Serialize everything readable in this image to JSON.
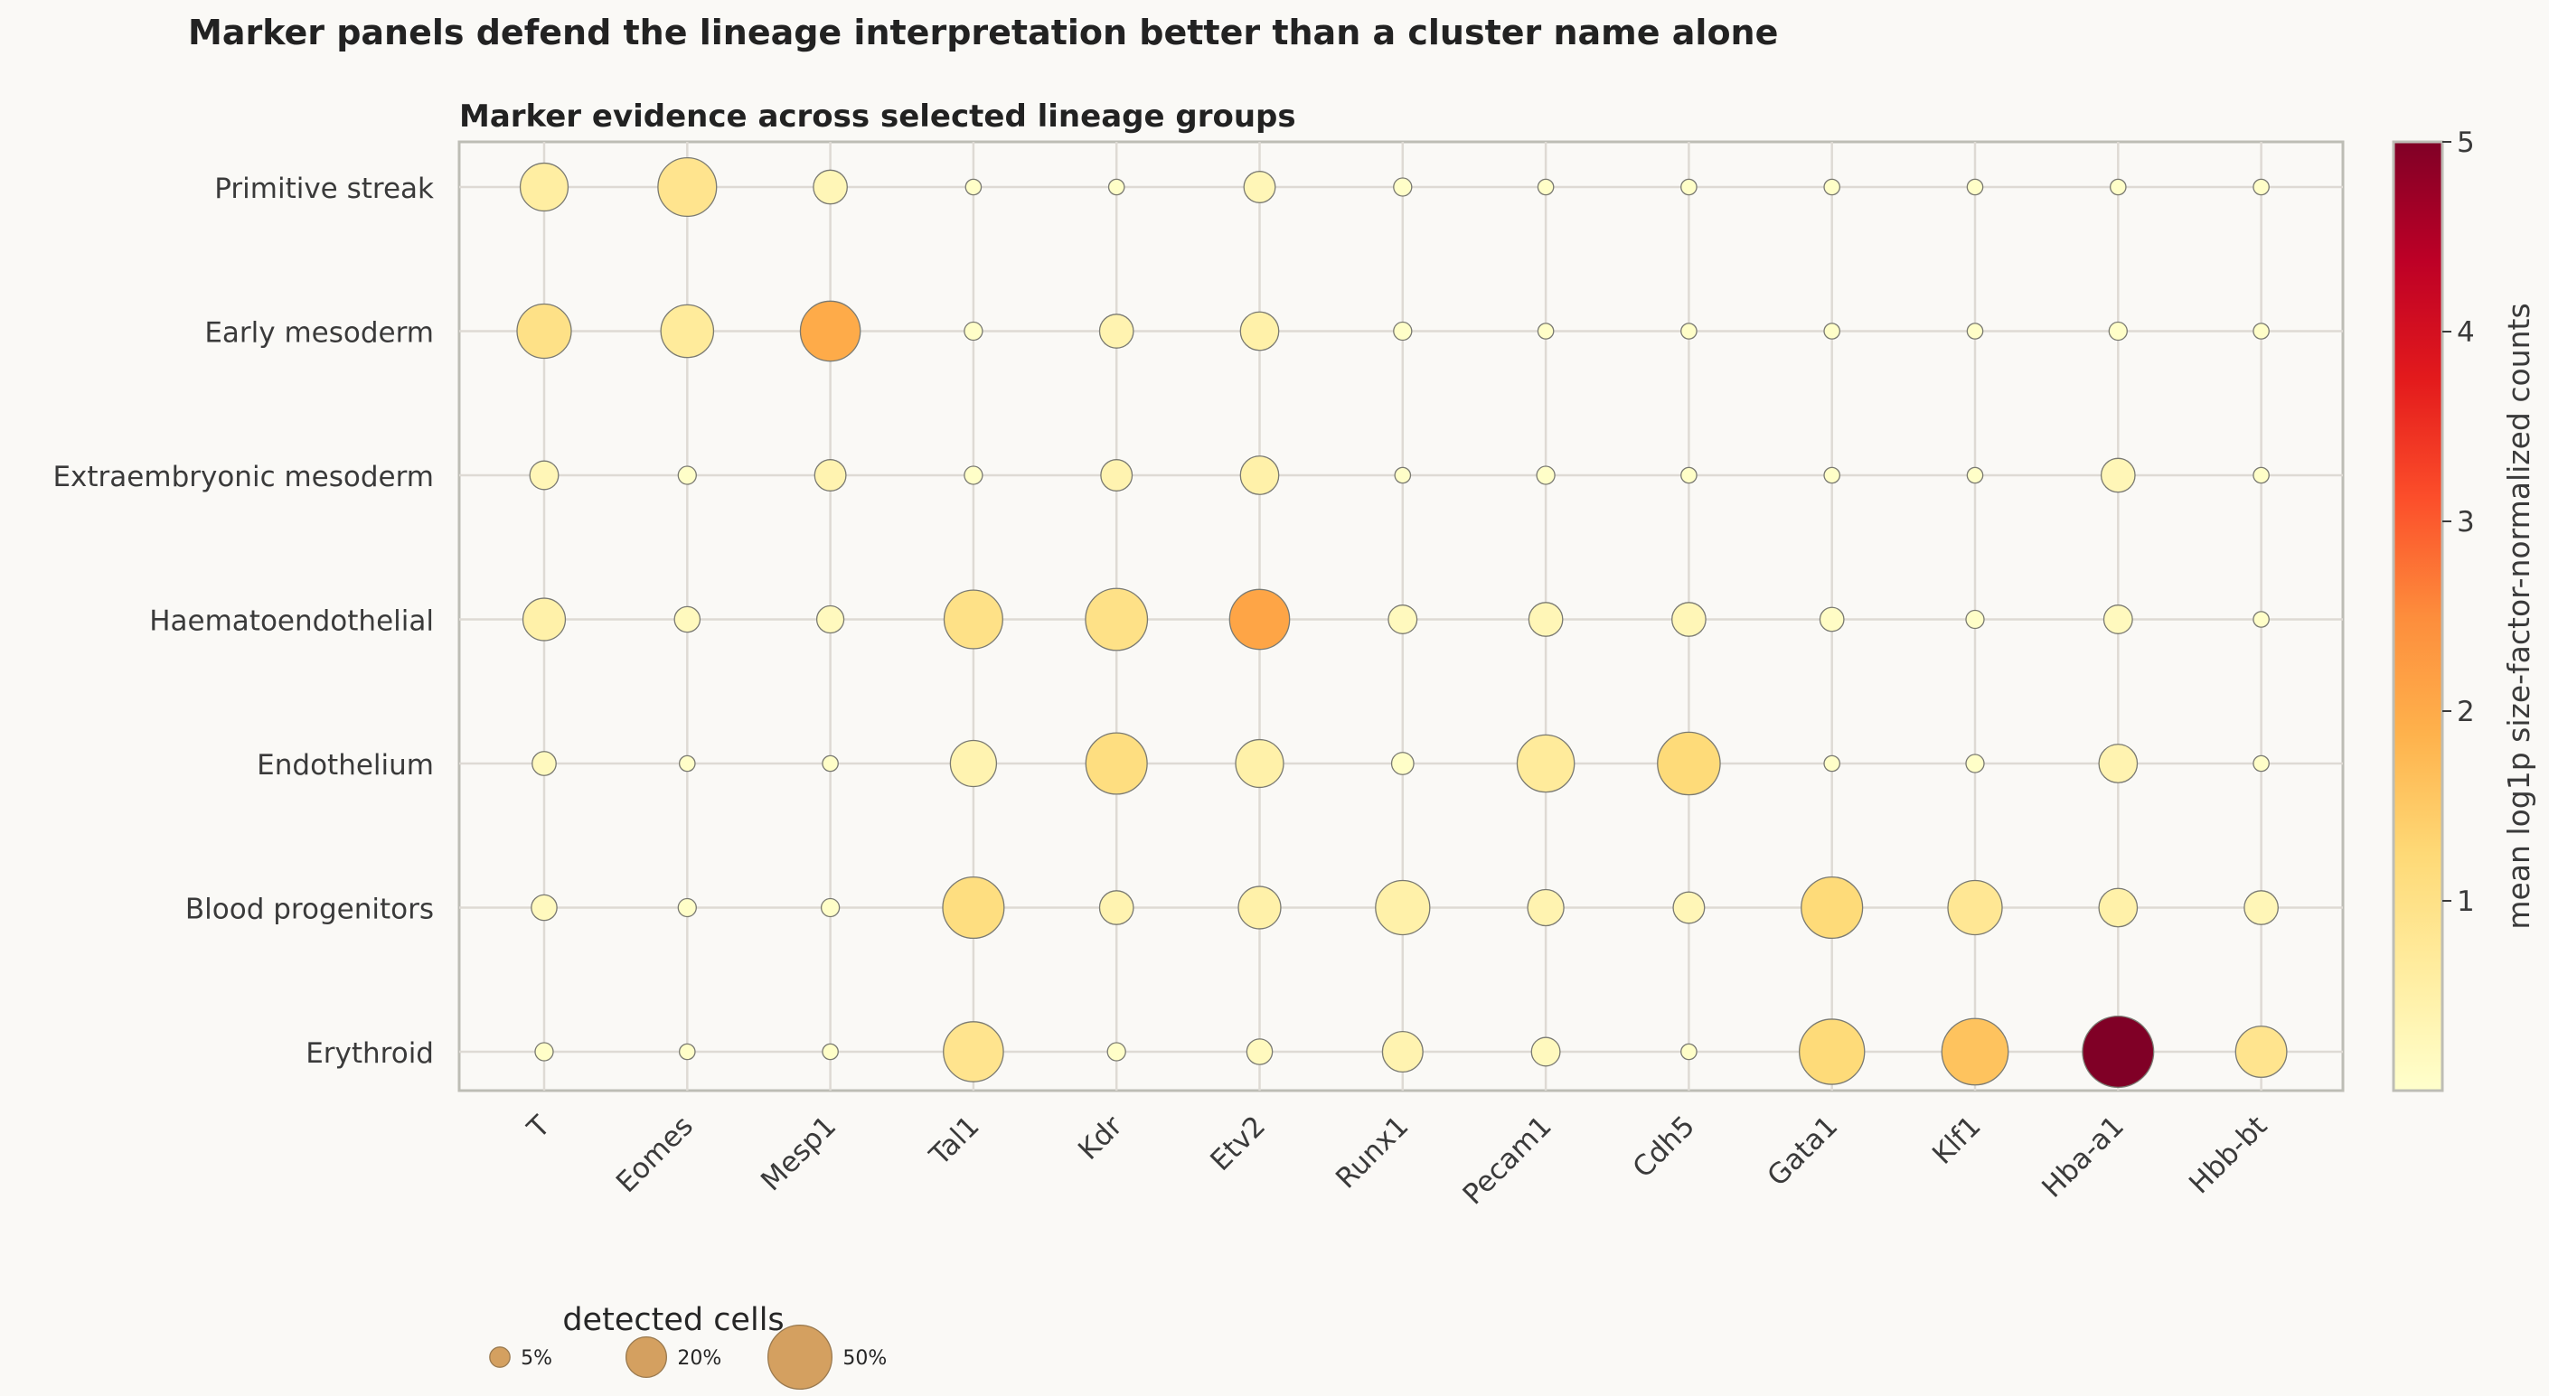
{
  "figure_title": "Marker panels defend the lineage interpretation better than a cluster name alone",
  "chart_data": {
    "type": "scatter",
    "subtype": "dot plot",
    "title": "Marker evidence across selected lineage groups",
    "x_categories": [
      "T",
      "Eomes",
      "Mesp1",
      "Tal1",
      "Kdr",
      "Etv2",
      "Runx1",
      "Pecam1",
      "Cdh5",
      "Gata1",
      "Klf1",
      "Hba-a1",
      "Hbb-bt"
    ],
    "y_categories": [
      "Primitive streak",
      "Early mesoderm",
      "Extraembryonic mesoderm",
      "Haematoendothelial",
      "Endothelium",
      "Blood progenitors",
      "Erythroid"
    ],
    "size_metric": "detected cells (%)",
    "color_metric": "mean log1p size-factor-normalized counts",
    "grid": true,
    "colormap": [
      "#ffffcc",
      "#ffeda0",
      "#fed976",
      "#feb24c",
      "#fd8d3c",
      "#fc4e2a",
      "#e31a1c",
      "#bd0026",
      "#800026"
    ],
    "colorbar": {
      "label": "mean log1p size-factor-normalized counts",
      "min": 0,
      "max": 5,
      "ticks": [
        "1",
        "2",
        "3",
        "4",
        "5"
      ]
    },
    "size_legend": {
      "title": "detected cells",
      "entries": [
        {
          "label": "5%",
          "value": 5
        },
        {
          "label": "20%",
          "value": 20
        },
        {
          "label": "50%",
          "value": 50
        }
      ],
      "color": "#d4a060"
    },
    "points": [
      {
        "group": "Primitive streak",
        "gene": "T",
        "pct": 28,
        "mean": 0.6
      },
      {
        "group": "Primitive streak",
        "gene": "Eomes",
        "pct": 42,
        "mean": 0.9
      },
      {
        "group": "Primitive streak",
        "gene": "Mesp1",
        "pct": 14,
        "mean": 0.3
      },
      {
        "group": "Primitive streak",
        "gene": "Tal1",
        "pct": 3,
        "mean": 0.05
      },
      {
        "group": "Primitive streak",
        "gene": "Kdr",
        "pct": 3,
        "mean": 0.05
      },
      {
        "group": "Primitive streak",
        "gene": "Etv2",
        "pct": 12,
        "mean": 0.3
      },
      {
        "group": "Primitive streak",
        "gene": "Runx1",
        "pct": 4,
        "mean": 0.05
      },
      {
        "group": "Primitive streak",
        "gene": "Pecam1",
        "pct": 3,
        "mean": 0.05
      },
      {
        "group": "Primitive streak",
        "gene": "Cdh5",
        "pct": 3,
        "mean": 0.05
      },
      {
        "group": "Primitive streak",
        "gene": "Gata1",
        "pct": 3,
        "mean": 0.05
      },
      {
        "group": "Primitive streak",
        "gene": "Klf1",
        "pct": 3,
        "mean": 0.05
      },
      {
        "group": "Primitive streak",
        "gene": "Hba-a1",
        "pct": 3,
        "mean": 0.05
      },
      {
        "group": "Primitive streak",
        "gene": "Hbb-bt",
        "pct": 3,
        "mean": 0.05
      },
      {
        "group": "Early mesoderm",
        "gene": "T",
        "pct": 36,
        "mean": 1.0
      },
      {
        "group": "Early mesoderm",
        "gene": "Eomes",
        "pct": 34,
        "mean": 0.7
      },
      {
        "group": "Early mesoderm",
        "gene": "Mesp1",
        "pct": 44,
        "mean": 2.0
      },
      {
        "group": "Early mesoderm",
        "gene": "Tal1",
        "pct": 4,
        "mean": 0.05
      },
      {
        "group": "Early mesoderm",
        "gene": "Kdr",
        "pct": 14,
        "mean": 0.4
      },
      {
        "group": "Early mesoderm",
        "gene": "Etv2",
        "pct": 18,
        "mean": 0.5
      },
      {
        "group": "Early mesoderm",
        "gene": "Runx1",
        "pct": 4,
        "mean": 0.05
      },
      {
        "group": "Early mesoderm",
        "gene": "Pecam1",
        "pct": 3,
        "mean": 0.05
      },
      {
        "group": "Early mesoderm",
        "gene": "Cdh5",
        "pct": 3,
        "mean": 0.05
      },
      {
        "group": "Early mesoderm",
        "gene": "Gata1",
        "pct": 3,
        "mean": 0.05
      },
      {
        "group": "Early mesoderm",
        "gene": "Klf1",
        "pct": 3,
        "mean": 0.05
      },
      {
        "group": "Early mesoderm",
        "gene": "Hba-a1",
        "pct": 4,
        "mean": 0.05
      },
      {
        "group": "Early mesoderm",
        "gene": "Hbb-bt",
        "pct": 3,
        "mean": 0.05
      },
      {
        "group": "Extraembryonic mesoderm",
        "gene": "T",
        "pct": 10,
        "mean": 0.3
      },
      {
        "group": "Extraembryonic mesoderm",
        "gene": "Eomes",
        "pct": 4,
        "mean": 0.05
      },
      {
        "group": "Extraembryonic mesoderm",
        "gene": "Mesp1",
        "pct": 12,
        "mean": 0.4
      },
      {
        "group": "Extraembryonic mesoderm",
        "gene": "Tal1",
        "pct": 4,
        "mean": 0.05
      },
      {
        "group": "Extraembryonic mesoderm",
        "gene": "Kdr",
        "pct": 12,
        "mean": 0.4
      },
      {
        "group": "Extraembryonic mesoderm",
        "gene": "Etv2",
        "pct": 18,
        "mean": 0.5
      },
      {
        "group": "Extraembryonic mesoderm",
        "gene": "Runx1",
        "pct": 3,
        "mean": 0.05
      },
      {
        "group": "Extraembryonic mesoderm",
        "gene": "Pecam1",
        "pct": 4,
        "mean": 0.05
      },
      {
        "group": "Extraembryonic mesoderm",
        "gene": "Cdh5",
        "pct": 3,
        "mean": 0.05
      },
      {
        "group": "Extraembryonic mesoderm",
        "gene": "Gata1",
        "pct": 3,
        "mean": 0.05
      },
      {
        "group": "Extraembryonic mesoderm",
        "gene": "Klf1",
        "pct": 3,
        "mean": 0.05
      },
      {
        "group": "Extraembryonic mesoderm",
        "gene": "Hba-a1",
        "pct": 14,
        "mean": 0.3
      },
      {
        "group": "Extraembryonic mesoderm",
        "gene": "Hbb-bt",
        "pct": 3,
        "mean": 0.05
      },
      {
        "group": "Haematoendothelial",
        "gene": "T",
        "pct": 22,
        "mean": 0.5
      },
      {
        "group": "Haematoendothelial",
        "gene": "Eomes",
        "pct": 8,
        "mean": 0.2
      },
      {
        "group": "Haematoendothelial",
        "gene": "Mesp1",
        "pct": 9,
        "mean": 0.2
      },
      {
        "group": "Haematoendothelial",
        "gene": "Tal1",
        "pct": 42,
        "mean": 1.0
      },
      {
        "group": "Haematoendothelial",
        "gene": "Kdr",
        "pct": 47,
        "mean": 1.0
      },
      {
        "group": "Haematoendothelial",
        "gene": "Etv2",
        "pct": 44,
        "mean": 2.1
      },
      {
        "group": "Haematoendothelial",
        "gene": "Runx1",
        "pct": 10,
        "mean": 0.2
      },
      {
        "group": "Haematoendothelial",
        "gene": "Pecam1",
        "pct": 14,
        "mean": 0.3
      },
      {
        "group": "Haematoendothelial",
        "gene": "Cdh5",
        "pct": 14,
        "mean": 0.3
      },
      {
        "group": "Haematoendothelial",
        "gene": "Gata1",
        "pct": 7,
        "mean": 0.1
      },
      {
        "group": "Haematoendothelial",
        "gene": "Klf1",
        "pct": 4,
        "mean": 0.05
      },
      {
        "group": "Haematoendothelial",
        "gene": "Hba-a1",
        "pct": 10,
        "mean": 0.2
      },
      {
        "group": "Haematoendothelial",
        "gene": "Hbb-bt",
        "pct": 3,
        "mean": 0.05
      },
      {
        "group": "Endothelium",
        "gene": "T",
        "pct": 7,
        "mean": 0.2
      },
      {
        "group": "Endothelium",
        "gene": "Eomes",
        "pct": 3,
        "mean": 0.05
      },
      {
        "group": "Endothelium",
        "gene": "Mesp1",
        "pct": 3,
        "mean": 0.05
      },
      {
        "group": "Endothelium",
        "gene": "Tal1",
        "pct": 26,
        "mean": 0.4
      },
      {
        "group": "Endothelium",
        "gene": "Kdr",
        "pct": 46,
        "mean": 1.1
      },
      {
        "group": "Endothelium",
        "gene": "Etv2",
        "pct": 28,
        "mean": 0.5
      },
      {
        "group": "Endothelium",
        "gene": "Runx1",
        "pct": 6,
        "mean": 0.05
      },
      {
        "group": "Endothelium",
        "gene": "Pecam1",
        "pct": 40,
        "mean": 0.7
      },
      {
        "group": "Endothelium",
        "gene": "Cdh5",
        "pct": 48,
        "mean": 1.2
      },
      {
        "group": "Endothelium",
        "gene": "Gata1",
        "pct": 3,
        "mean": 0.05
      },
      {
        "group": "Endothelium",
        "gene": "Klf1",
        "pct": 4,
        "mean": 0.05
      },
      {
        "group": "Endothelium",
        "gene": "Hba-a1",
        "pct": 18,
        "mean": 0.4
      },
      {
        "group": "Endothelium",
        "gene": "Hbb-bt",
        "pct": 3,
        "mean": 0.05
      },
      {
        "group": "Blood progenitors",
        "gene": "T",
        "pct": 8,
        "mean": 0.2
      },
      {
        "group": "Blood progenitors",
        "gene": "Eomes",
        "pct": 4,
        "mean": 0.05
      },
      {
        "group": "Blood progenitors",
        "gene": "Mesp1",
        "pct": 4,
        "mean": 0.05
      },
      {
        "group": "Blood progenitors",
        "gene": "Tal1",
        "pct": 46,
        "mean": 1.1
      },
      {
        "group": "Blood progenitors",
        "gene": "Kdr",
        "pct": 14,
        "mean": 0.4
      },
      {
        "group": "Blood progenitors",
        "gene": "Etv2",
        "pct": 22,
        "mean": 0.5
      },
      {
        "group": "Blood progenitors",
        "gene": "Runx1",
        "pct": 36,
        "mean": 0.5
      },
      {
        "group": "Blood progenitors",
        "gene": "Pecam1",
        "pct": 16,
        "mean": 0.4
      },
      {
        "group": "Blood progenitors",
        "gene": "Cdh5",
        "pct": 12,
        "mean": 0.3
      },
      {
        "group": "Blood progenitors",
        "gene": "Gata1",
        "pct": 46,
        "mean": 1.2
      },
      {
        "group": "Blood progenitors",
        "gene": "Klf1",
        "pct": 36,
        "mean": 0.8
      },
      {
        "group": "Blood progenitors",
        "gene": "Hba-a1",
        "pct": 18,
        "mean": 0.5
      },
      {
        "group": "Blood progenitors",
        "gene": "Hbb-bt",
        "pct": 14,
        "mean": 0.3
      },
      {
        "group": "Erythroid",
        "gene": "T",
        "pct": 4,
        "mean": 0.05
      },
      {
        "group": "Erythroid",
        "gene": "Eomes",
        "pct": 3,
        "mean": 0.05
      },
      {
        "group": "Erythroid",
        "gene": "Mesp1",
        "pct": 3,
        "mean": 0.05
      },
      {
        "group": "Erythroid",
        "gene": "Tal1",
        "pct": 44,
        "mean": 0.9
      },
      {
        "group": "Erythroid",
        "gene": "Kdr",
        "pct": 4,
        "mean": 0.05
      },
      {
        "group": "Erythroid",
        "gene": "Etv2",
        "pct": 8,
        "mean": 0.2
      },
      {
        "group": "Erythroid",
        "gene": "Runx1",
        "pct": 20,
        "mean": 0.4
      },
      {
        "group": "Erythroid",
        "gene": "Pecam1",
        "pct": 10,
        "mean": 0.2
      },
      {
        "group": "Erythroid",
        "gene": "Cdh5",
        "pct": 3,
        "mean": 0.05
      },
      {
        "group": "Erythroid",
        "gene": "Gata1",
        "pct": 52,
        "mean": 1.2
      },
      {
        "group": "Erythroid",
        "gene": "Klf1",
        "pct": 54,
        "mean": 1.6
      },
      {
        "group": "Erythroid",
        "gene": "Hba-a1",
        "pct": 62,
        "mean": 5.0
      },
      {
        "group": "Erythroid",
        "gene": "Hbb-bt",
        "pct": 32,
        "mean": 0.9
      }
    ]
  }
}
